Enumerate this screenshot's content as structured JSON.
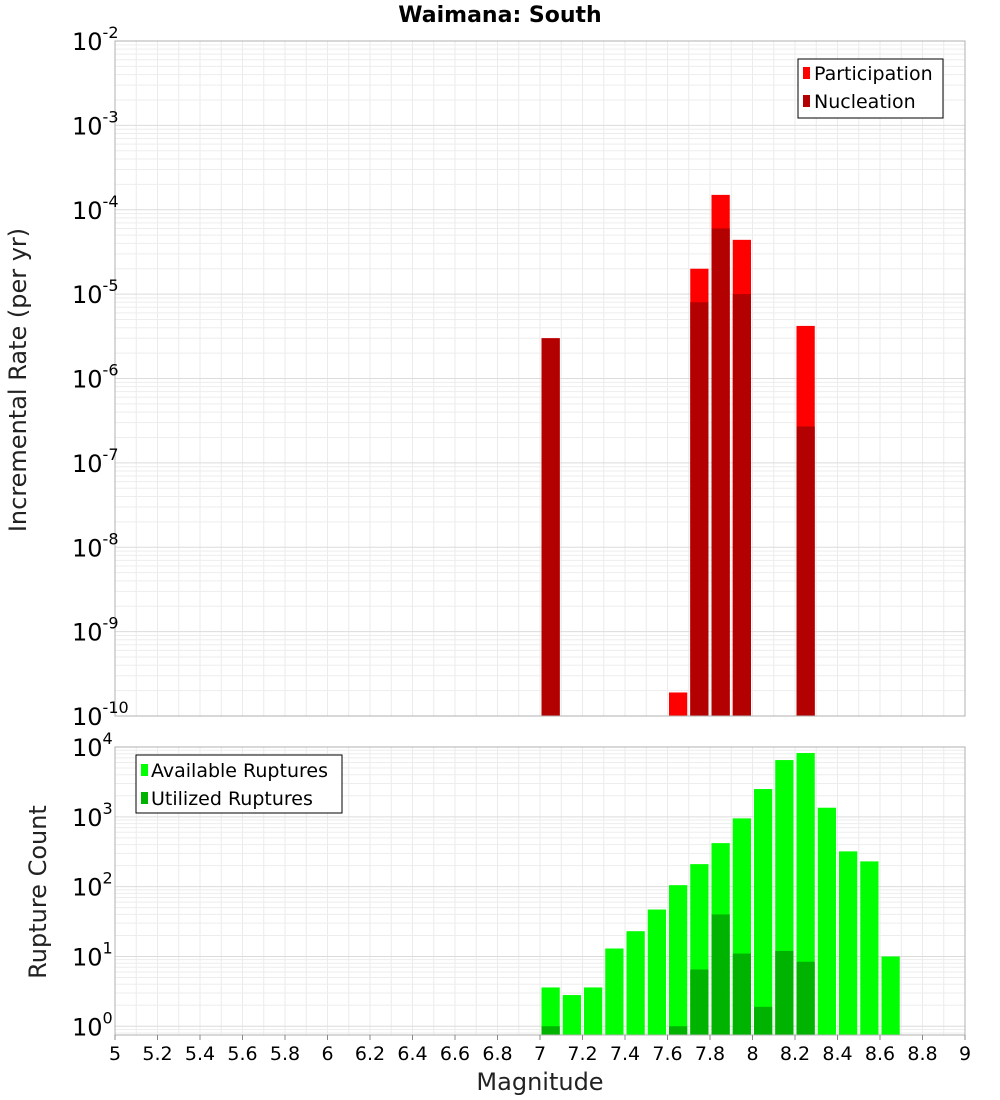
{
  "chart_data": [
    {
      "type": "bar",
      "title": "Waimana: South",
      "xlabel": "",
      "ylabel": "Incremental Rate (per yr)",
      "xlim": [
        5,
        9
      ],
      "ylim": [
        1e-10,
        0.01
      ],
      "y_scale": "log",
      "grid": true,
      "legend_placement": "top-right",
      "y_ticks": [
        {
          "base": "10",
          "exp": "-2"
        },
        {
          "base": "10",
          "exp": "-3"
        },
        {
          "base": "10",
          "exp": "-4"
        },
        {
          "base": "10",
          "exp": "-5"
        },
        {
          "base": "10",
          "exp": "-6"
        },
        {
          "base": "10",
          "exp": "-7"
        },
        {
          "base": "10",
          "exp": "-8"
        },
        {
          "base": "10",
          "exp": "-9"
        },
        {
          "base": "10",
          "exp": "-10"
        }
      ],
      "series": [
        {
          "name": "Participation",
          "color": "#ff0000",
          "points": [
            {
              "x": 7.05,
              "y": 3e-06
            },
            {
              "x": 7.65,
              "y": 1.9e-10
            },
            {
              "x": 7.75,
              "y": 2e-05
            },
            {
              "x": 7.85,
              "y": 0.00015
            },
            {
              "x": 7.95,
              "y": 4.4e-05
            },
            {
              "x": 8.25,
              "y": 4.2e-06
            }
          ]
        },
        {
          "name": "Nucleation",
          "color": "#b30000",
          "points": [
            {
              "x": 7.05,
              "y": 3e-06
            },
            {
              "x": 7.75,
              "y": 8e-06
            },
            {
              "x": 7.85,
              "y": 6e-05
            },
            {
              "x": 7.95,
              "y": 1e-05
            },
            {
              "x": 8.25,
              "y": 2.7e-07
            }
          ]
        }
      ]
    },
    {
      "type": "bar",
      "title": "",
      "xlabel": "Magnitude",
      "ylabel": "Rupture Count",
      "xlim": [
        5,
        9
      ],
      "ylim": [
        0.75,
        10000
      ],
      "y_scale": "log",
      "grid": true,
      "legend_placement": "top-left",
      "x_tick_labels": [
        "5",
        "5.2",
        "5.4",
        "5.6",
        "5.8",
        "6",
        "6.2",
        "6.4",
        "6.6",
        "6.8",
        "7",
        "7.2",
        "7.4",
        "7.6",
        "7.8",
        "8",
        "8.2",
        "8.4",
        "8.6",
        "8.8",
        "9"
      ],
      "y_ticks": [
        {
          "base": "10",
          "exp": "4"
        },
        {
          "base": "10",
          "exp": "3"
        },
        {
          "base": "10",
          "exp": "2"
        },
        {
          "base": "10",
          "exp": "1"
        },
        {
          "base": "10",
          "exp": "0"
        }
      ],
      "series": [
        {
          "name": "Available Ruptures",
          "color": "#00ff00",
          "points": [
            {
              "x": 7.05,
              "y": 3.6
            },
            {
              "x": 7.15,
              "y": 2.8
            },
            {
              "x": 7.25,
              "y": 3.6
            },
            {
              "x": 7.35,
              "y": 13
            },
            {
              "x": 7.45,
              "y": 23
            },
            {
              "x": 7.55,
              "y": 47
            },
            {
              "x": 7.65,
              "y": 105
            },
            {
              "x": 7.75,
              "y": 210
            },
            {
              "x": 7.85,
              "y": 420
            },
            {
              "x": 7.95,
              "y": 950
            },
            {
              "x": 8.05,
              "y": 2500
            },
            {
              "x": 8.15,
              "y": 6500
            },
            {
              "x": 8.25,
              "y": 8200
            },
            {
              "x": 8.35,
              "y": 1350
            },
            {
              "x": 8.45,
              "y": 320
            },
            {
              "x": 8.55,
              "y": 230
            },
            {
              "x": 8.65,
              "y": 10
            }
          ]
        },
        {
          "name": "Utilized Ruptures",
          "color": "#00b300",
          "points": [
            {
              "x": 7.05,
              "y": 1
            },
            {
              "x": 7.65,
              "y": 1
            },
            {
              "x": 7.75,
              "y": 6.5
            },
            {
              "x": 7.85,
              "y": 40
            },
            {
              "x": 7.95,
              "y": 11
            },
            {
              "x": 8.05,
              "y": 1.9
            },
            {
              "x": 8.15,
              "y": 12
            },
            {
              "x": 8.25,
              "y": 8.4
            }
          ]
        }
      ]
    }
  ]
}
